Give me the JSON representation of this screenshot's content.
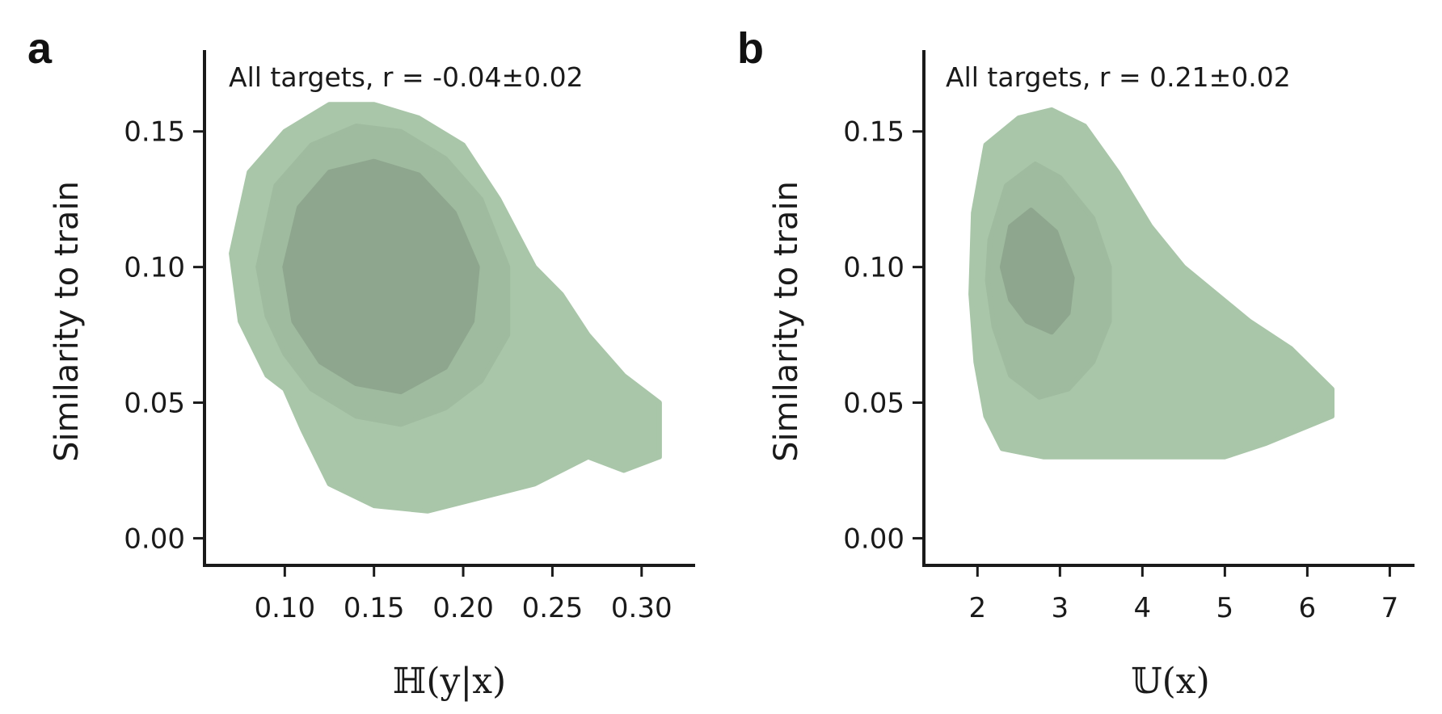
{
  "chart_data": [
    {
      "type": "density-contour",
      "panel_label": "a",
      "annotation": "All targets, r = -0.04±0.02",
      "xlabel": "ℍ(y|x)",
      "ylabel": "Similarity to train",
      "xlim": [
        0.055,
        0.33
      ],
      "ylim": [
        -0.01,
        0.18
      ],
      "xticks": [
        0.1,
        0.15,
        0.2,
        0.25,
        0.3
      ],
      "xtick_labels": [
        "0.10",
        "0.15",
        "0.20",
        "0.25",
        "0.30"
      ],
      "yticks": [
        0.0,
        0.05,
        0.1,
        0.15
      ],
      "ytick_labels": [
        "0.00",
        "0.05",
        "0.10",
        "0.15"
      ],
      "color": "#a7c4a7",
      "levels": [
        {
          "level": 1,
          "color": "#a9c6a9",
          "region": [
            [
              0.07,
              0.105
            ],
            [
              0.08,
              0.135
            ],
            [
              0.1,
              0.15
            ],
            [
              0.125,
              0.16
            ],
            [
              0.15,
              0.16
            ],
            [
              0.175,
              0.155
            ],
            [
              0.2,
              0.145
            ],
            [
              0.22,
              0.125
            ],
            [
              0.24,
              0.1
            ],
            [
              0.255,
              0.09
            ],
            [
              0.27,
              0.075
            ],
            [
              0.29,
              0.06
            ],
            [
              0.31,
              0.05
            ],
            [
              0.31,
              0.03
            ],
            [
              0.29,
              0.025
            ],
            [
              0.27,
              0.03
            ],
            [
              0.24,
              0.02
            ],
            [
              0.21,
              0.015
            ],
            [
              0.18,
              0.01
            ],
            [
              0.15,
              0.012
            ],
            [
              0.125,
              0.02
            ],
            [
              0.11,
              0.04
            ],
            [
              0.1,
              0.055
            ],
            [
              0.09,
              0.06
            ],
            [
              0.075,
              0.08
            ]
          ]
        },
        {
          "level": 2,
          "color": "#9fbb9f",
          "region": [
            [
              0.085,
              0.1
            ],
            [
              0.095,
              0.13
            ],
            [
              0.115,
              0.145
            ],
            [
              0.14,
              0.152
            ],
            [
              0.165,
              0.15
            ],
            [
              0.19,
              0.14
            ],
            [
              0.21,
              0.125
            ],
            [
              0.225,
              0.1
            ],
            [
              0.225,
              0.075
            ],
            [
              0.21,
              0.058
            ],
            [
              0.19,
              0.048
            ],
            [
              0.165,
              0.042
            ],
            [
              0.14,
              0.045
            ],
            [
              0.115,
              0.055
            ],
            [
              0.1,
              0.068
            ],
            [
              0.09,
              0.082
            ]
          ]
        },
        {
          "level": 3,
          "color": "#8ea68e",
          "region": [
            [
              0.1,
              0.1
            ],
            [
              0.108,
              0.122
            ],
            [
              0.125,
              0.135
            ],
            [
              0.15,
              0.139
            ],
            [
              0.175,
              0.134
            ],
            [
              0.195,
              0.12
            ],
            [
              0.208,
              0.1
            ],
            [
              0.205,
              0.08
            ],
            [
              0.19,
              0.063
            ],
            [
              0.165,
              0.054
            ],
            [
              0.14,
              0.057
            ],
            [
              0.12,
              0.065
            ],
            [
              0.105,
              0.08
            ]
          ]
        }
      ]
    },
    {
      "type": "density-contour",
      "panel_label": "b",
      "annotation": "All targets, r = 0.21±0.02",
      "xlabel": "𝕌(x)",
      "ylabel": "Similarity to train",
      "xlim": [
        1.35,
        7.3
      ],
      "ylim": [
        -0.01,
        0.18
      ],
      "xticks": [
        2,
        3,
        4,
        5,
        6,
        7
      ],
      "xtick_labels": [
        "2",
        "3",
        "4",
        "5",
        "6",
        "7"
      ],
      "yticks": [
        0.0,
        0.05,
        0.1,
        0.15
      ],
      "ytick_labels": [
        "0.00",
        "0.05",
        "0.10",
        "0.15"
      ],
      "color": "#a7c4a7",
      "levels": [
        {
          "level": 1,
          "color": "#a9c6a9",
          "region": [
            [
              1.95,
              0.12
            ],
            [
              2.1,
              0.145
            ],
            [
              2.5,
              0.155
            ],
            [
              2.9,
              0.158
            ],
            [
              3.3,
              0.152
            ],
            [
              3.7,
              0.135
            ],
            [
              4.1,
              0.115
            ],
            [
              4.5,
              0.1
            ],
            [
              4.9,
              0.09
            ],
            [
              5.3,
              0.08
            ],
            [
              5.8,
              0.07
            ],
            [
              6.3,
              0.055
            ],
            [
              6.3,
              0.045
            ],
            [
              5.9,
              0.04
            ],
            [
              5.5,
              0.035
            ],
            [
              5.0,
              0.03
            ],
            [
              4.5,
              0.03
            ],
            [
              3.9,
              0.03
            ],
            [
              3.3,
              0.03
            ],
            [
              2.8,
              0.03
            ],
            [
              2.3,
              0.033
            ],
            [
              2.1,
              0.045
            ],
            [
              1.98,
              0.065
            ],
            [
              1.92,
              0.09
            ]
          ]
        },
        {
          "level": 2,
          "color": "#9fbb9f",
          "region": [
            [
              2.15,
              0.11
            ],
            [
              2.35,
              0.13
            ],
            [
              2.7,
              0.138
            ],
            [
              3.0,
              0.133
            ],
            [
              3.4,
              0.118
            ],
            [
              3.6,
              0.1
            ],
            [
              3.6,
              0.08
            ],
            [
              3.4,
              0.065
            ],
            [
              3.1,
              0.055
            ],
            [
              2.75,
              0.052
            ],
            [
              2.4,
              0.06
            ],
            [
              2.2,
              0.078
            ],
            [
              2.12,
              0.095
            ]
          ]
        },
        {
          "level": 3,
          "color": "#8ea68e",
          "region": [
            [
              2.3,
              0.1
            ],
            [
              2.4,
              0.115
            ],
            [
              2.65,
              0.121
            ],
            [
              2.95,
              0.113
            ],
            [
              3.15,
              0.096
            ],
            [
              3.1,
              0.083
            ],
            [
              2.9,
              0.076
            ],
            [
              2.6,
              0.08
            ],
            [
              2.4,
              0.088
            ]
          ]
        }
      ]
    }
  ]
}
